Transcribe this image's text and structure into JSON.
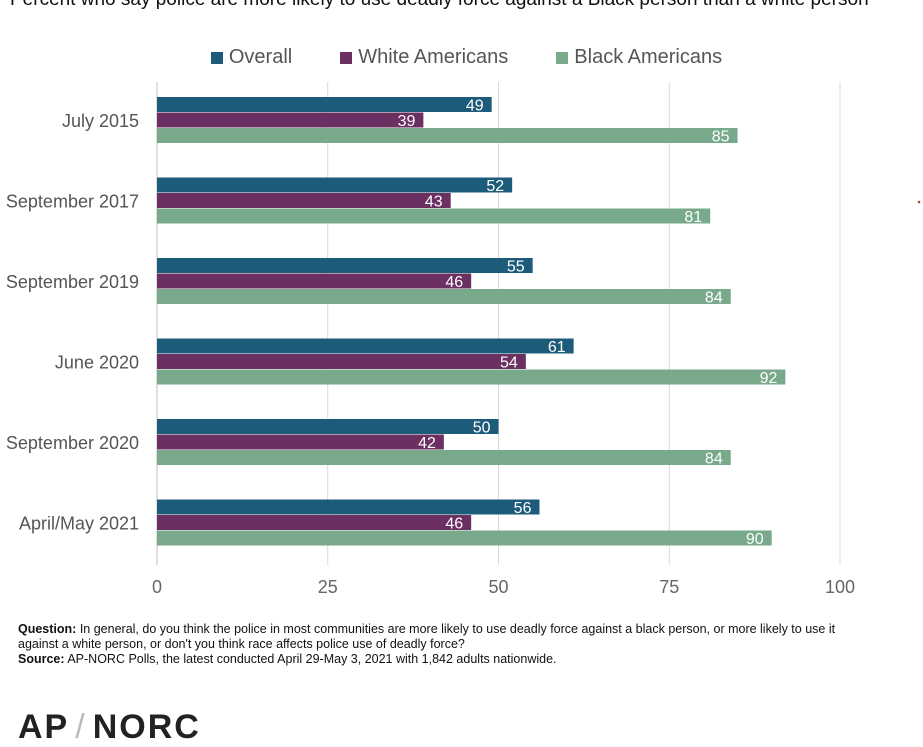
{
  "title": "Percent who say police are more likely to use deadly force against a Black person than a white person",
  "colors": {
    "overall": "#1d5b7a",
    "white": "#6b2f62",
    "black": "#78a98b"
  },
  "chart_data": {
    "type": "bar",
    "orientation": "horizontal",
    "categories": [
      "July 2015",
      "September 2017",
      "September 2019",
      "June 2020",
      "September 2020",
      "April/May 2021"
    ],
    "series": [
      {
        "name": "Overall",
        "values": [
          49,
          52,
          55,
          61,
          50,
          56
        ]
      },
      {
        "name": "White Americans",
        "values": [
          39,
          43,
          46,
          54,
          42,
          46
        ]
      },
      {
        "name": "Black Americans",
        "values": [
          85,
          81,
          84,
          92,
          84,
          90
        ]
      }
    ],
    "xlim": [
      0,
      100
    ],
    "xticks": [
      0,
      25,
      50,
      75,
      100
    ],
    "legend": "top",
    "grid": true
  },
  "footer": {
    "question_label": "Question:",
    "question_text": "In general, do you think the police in most communities are more likely to use deadly force against a black person, or more likely to use it against a white person, or don't you think race affects police use of deadly force?",
    "source_label": "Source:",
    "source_text": "AP-NORC Polls, the latest conducted April 29-May 3, 2021 with 1,842 adults nationwide."
  },
  "logo": {
    "left": "AP",
    "right": "NORC"
  }
}
